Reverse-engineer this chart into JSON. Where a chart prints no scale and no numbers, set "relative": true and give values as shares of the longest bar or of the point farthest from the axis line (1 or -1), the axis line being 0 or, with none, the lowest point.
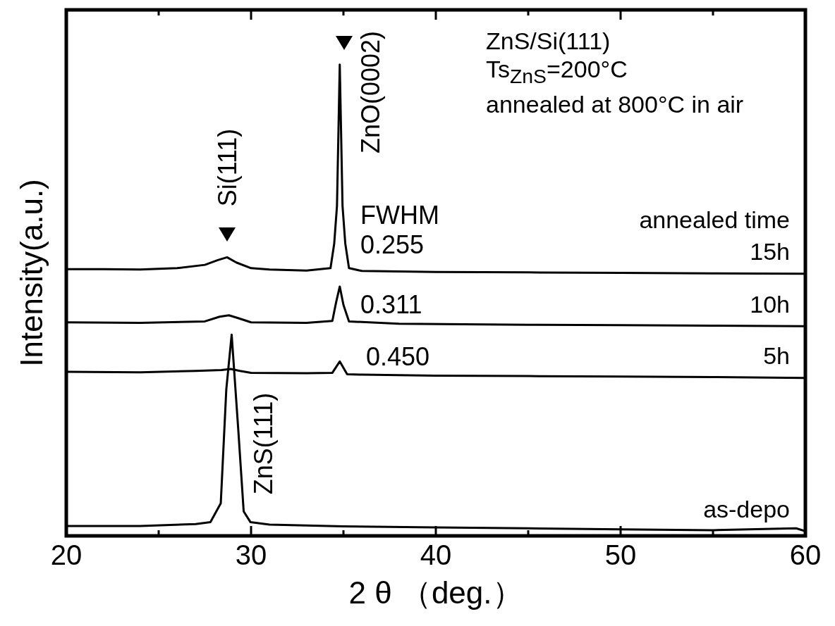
{
  "chart_data": {
    "type": "line",
    "relative": true,
    "xlabel": "2 θ （deg.）",
    "ylabel": "Intensity(a.u.)",
    "legend_title": "annealed time",
    "legend": false,
    "grid": false,
    "marker": "none",
    "line_style": "solid",
    "xlim": [
      20,
      60
    ],
    "xticks": [
      20,
      {
        "value": 25,
        "label": null
      },
      30,
      {
        "value": 35,
        "label": null
      },
      40,
      {
        "value": 45,
        "label": null
      },
      50,
      {
        "value": 55,
        "label": null
      },
      60
    ],
    "series": [
      {
        "name": "15h",
        "color": "#000000",
        "x": [
          20,
          22,
          24,
          26,
          27.5,
          28.2,
          28.7,
          29.2,
          30,
          31,
          33,
          34.3,
          34.5,
          34.65,
          34.8,
          34.95,
          35.1,
          35.3,
          36,
          40,
          45,
          50,
          55,
          60
        ],
        "values": [
          0.566,
          0.566,
          0.565,
          0.568,
          0.575,
          0.585,
          0.591,
          0.58,
          0.568,
          0.565,
          0.563,
          0.568,
          0.62,
          0.7,
          1.0,
          0.7,
          0.62,
          0.568,
          0.562,
          0.56,
          0.559,
          0.558,
          0.557,
          0.556
        ]
      },
      {
        "name": "10h",
        "color": "#000000",
        "x": [
          20,
          24,
          27.5,
          28.3,
          28.8,
          29.3,
          30,
          33,
          34.4,
          34.6,
          34.8,
          35.0,
          35.3,
          38,
          45,
          50,
          55,
          60
        ],
        "values": [
          0.453,
          0.452,
          0.455,
          0.465,
          0.468,
          0.462,
          0.453,
          0.452,
          0.456,
          0.495,
          0.529,
          0.49,
          0.455,
          0.45,
          0.448,
          0.447,
          0.446,
          0.445
        ]
      },
      {
        "name": "5h",
        "color": "#000000",
        "x": [
          20,
          24,
          27,
          28.4,
          28.9,
          29.4,
          30,
          33,
          34.4,
          34.8,
          35.2,
          36,
          40,
          45,
          50,
          55,
          60
        ],
        "values": [
          0.348,
          0.347,
          0.35,
          0.352,
          0.354,
          0.35,
          0.346,
          0.345,
          0.346,
          0.37,
          0.343,
          0.342,
          0.34,
          0.339,
          0.338,
          0.337,
          0.335
        ]
      },
      {
        "name": "as-depo",
        "color": "#000000",
        "x": [
          20,
          24,
          27,
          27.8,
          28.36,
          28.66,
          28.95,
          29.31,
          29.6,
          29.97,
          31,
          35,
          40,
          45,
          50,
          55,
          59.5,
          60
        ],
        "values": [
          0.021,
          0.021,
          0.025,
          0.029,
          0.069,
          0.311,
          0.427,
          0.224,
          0.052,
          0.029,
          0.024,
          0.02,
          0.018,
          0.016,
          0.014,
          0.012,
          0.016,
          0.01
        ]
      }
    ],
    "annotations": [
      "Si(111)",
      "ZnO(0002)",
      "ZnS(111)",
      "FWHM",
      "0.255",
      "0.311",
      "0.450",
      "ZnS/Si(111)",
      "Ts$_{ZnS}$=200°C",
      "annealed at 800°C in air"
    ]
  }
}
